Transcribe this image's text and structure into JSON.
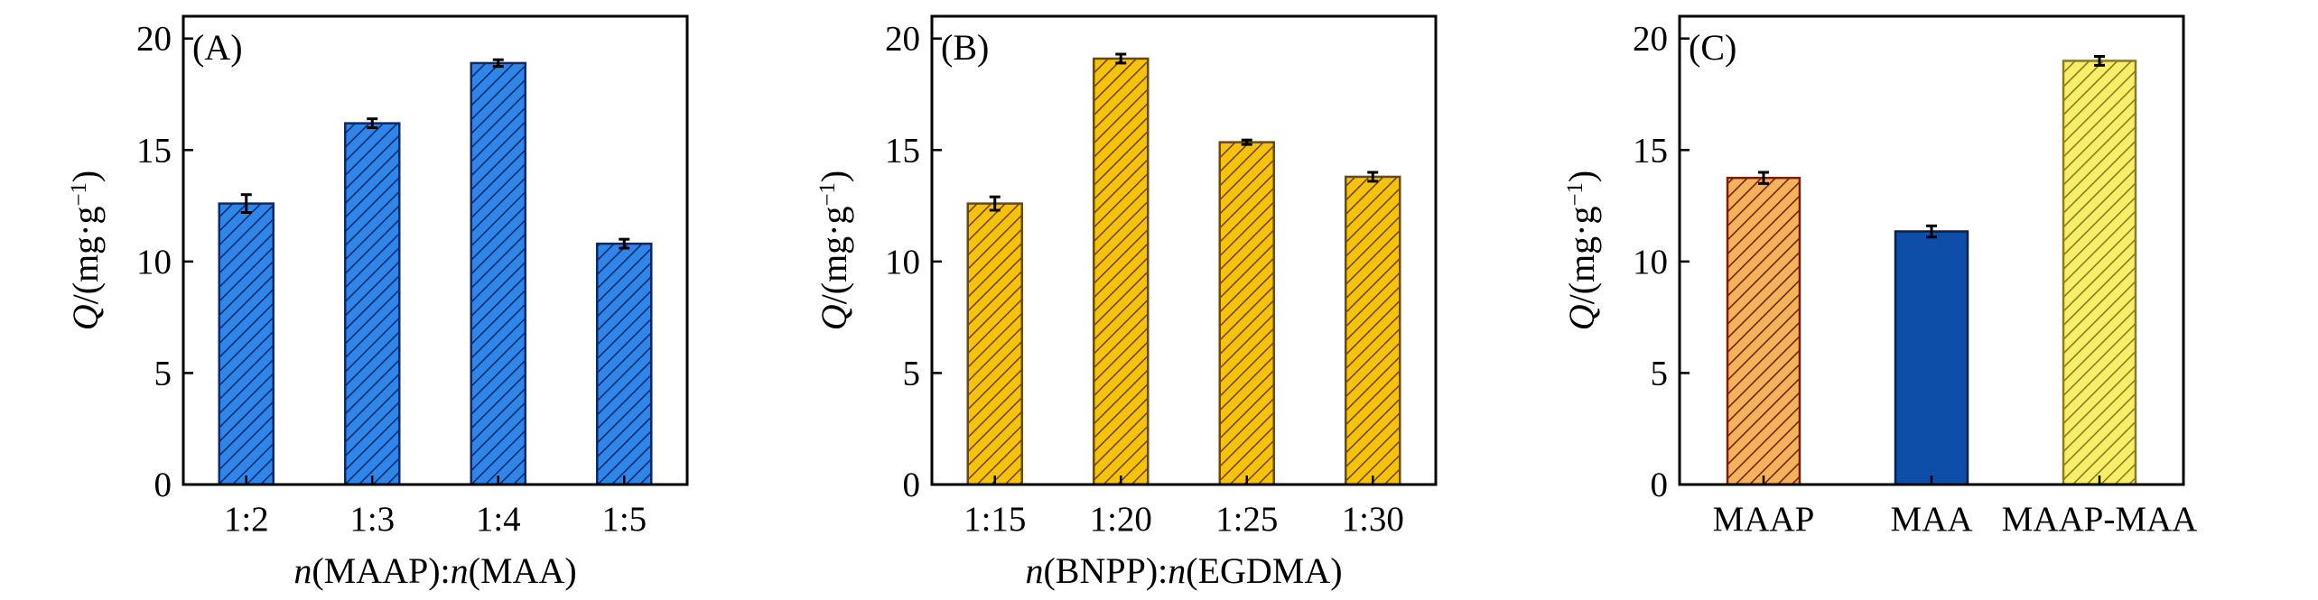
{
  "chart_data": [
    {
      "type": "bar",
      "panel_label": "(A)",
      "categories": [
        "1:2",
        "1:3",
        "1:4",
        "1:5"
      ],
      "values": [
        12.6,
        16.2,
        18.9,
        10.8
      ],
      "errors": [
        0.4,
        0.2,
        0.15,
        0.2
      ],
      "xlabel_parts": [
        {
          "text": "n",
          "italic": true
        },
        {
          "text": "(MAAP):",
          "italic": false
        },
        {
          "text": "n",
          "italic": true
        },
        {
          "text": "(MAA)",
          "italic": false
        }
      ],
      "ylabel_parts": [
        {
          "text": "Q",
          "italic": true
        },
        {
          "text": "/(mg·g",
          "italic": false
        },
        {
          "text": "−1",
          "italic": false,
          "sup": true
        },
        {
          "text": ")",
          "italic": false
        }
      ],
      "ylim": [
        0,
        21
      ],
      "yticks": [
        0,
        5,
        10,
        15,
        20
      ],
      "colors": [
        {
          "fill": "#2f86e8",
          "stroke": "#0b2a6e"
        },
        {
          "fill": "#2f86e8",
          "stroke": "#0b2a6e"
        },
        {
          "fill": "#2f86e8",
          "stroke": "#0b2a6e"
        },
        {
          "fill": "#2f86e8",
          "stroke": "#0b2a6e"
        }
      ],
      "hatch": [
        "diagonal",
        "diagonal",
        "diagonal",
        "diagonal"
      ]
    },
    {
      "type": "bar",
      "panel_label": "(B)",
      "categories": [
        "1:15",
        "1:20",
        "1:25",
        "1:30"
      ],
      "values": [
        12.6,
        19.1,
        15.35,
        13.8
      ],
      "errors": [
        0.3,
        0.2,
        0.1,
        0.2
      ],
      "xlabel_parts": [
        {
          "text": "n",
          "italic": true
        },
        {
          "text": "(BNPP):",
          "italic": false
        },
        {
          "text": "n",
          "italic": true
        },
        {
          "text": "(EGDMA)",
          "italic": false
        }
      ],
      "ylabel_parts": [
        {
          "text": "Q",
          "italic": true
        },
        {
          "text": "/(mg·g",
          "italic": false
        },
        {
          "text": "−1",
          "italic": false,
          "sup": true
        },
        {
          "text": ")",
          "italic": false
        }
      ],
      "ylim": [
        0,
        21
      ],
      "yticks": [
        0,
        5,
        10,
        15,
        20
      ],
      "colors": [
        {
          "fill": "#f7c20d",
          "stroke": "#6b4a10"
        },
        {
          "fill": "#f7c20d",
          "stroke": "#6b4a10"
        },
        {
          "fill": "#f7c20d",
          "stroke": "#6b4a10"
        },
        {
          "fill": "#f7c20d",
          "stroke": "#6b4a10"
        }
      ],
      "hatch": [
        "diagonal",
        "diagonal",
        "diagonal",
        "diagonal"
      ]
    },
    {
      "type": "bar",
      "panel_label": "(C)",
      "categories": [
        "MAAP",
        "MAA",
        "MAAP-MAA"
      ],
      "values": [
        13.75,
        11.35,
        19.0
      ],
      "errors": [
        0.25,
        0.25,
        0.2
      ],
      "xlabel_parts": [],
      "ylabel_parts": [
        {
          "text": "Q",
          "italic": true
        },
        {
          "text": "/(mg·g",
          "italic": false
        },
        {
          "text": "−1",
          "italic": false,
          "sup": true
        },
        {
          "text": ")",
          "italic": false
        }
      ],
      "ylim": [
        0,
        21
      ],
      "yticks": [
        0,
        5,
        10,
        15,
        20
      ],
      "colors": [
        {
          "fill": "#f2b35a",
          "stroke": "#7a1f10"
        },
        {
          "fill": "#0d4ea8",
          "stroke": "#06204a"
        },
        {
          "fill": "#f7ee6a",
          "stroke": "#8a7a20"
        }
      ],
      "hatch": [
        "diagonal",
        "none",
        "diagonal"
      ]
    }
  ]
}
